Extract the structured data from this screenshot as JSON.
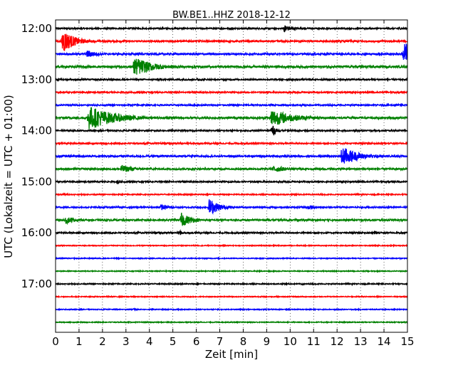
{
  "chart_data": {
    "type": "line",
    "chart_kind": "helicorder / seismogram dayplot",
    "title": "BW.BE1..HHZ 2018-12-12",
    "xlabel": "Zeit  [min]",
    "ylabel": "UTC (Lokalzeit = UTC + 01:00)",
    "xlim": [
      0,
      15
    ],
    "x_ticks": [
      "0",
      "1",
      "2",
      "3",
      "4",
      "5",
      "6",
      "7",
      "8",
      "9",
      "10",
      "11",
      "12",
      "13",
      "14",
      "15"
    ],
    "y_ticks": [
      "12:00",
      "13:00",
      "14:00",
      "15:00",
      "16:00",
      "17:00"
    ],
    "y_tick_rows": [
      0,
      4,
      8,
      12,
      16,
      20
    ],
    "vertical_grid": "dotted at each minute",
    "trace_colors": [
      "#000000",
      "#ff0000",
      "#0000ff",
      "#008000"
    ],
    "rows": [
      {
        "start": "12:00",
        "noise": 0.08,
        "events": [
          {
            "t": 9.75,
            "amp": 0.45,
            "dur": 0.35
          },
          {
            "t": 12.2,
            "amp": 0.15,
            "dur": 0.15
          },
          {
            "t": 14.6,
            "amp": 0.2,
            "dur": 0.2
          }
        ]
      },
      {
        "start": "12:15",
        "noise": 0.1,
        "events": [
          {
            "t": 0.3,
            "amp": 1.5,
            "dur": 0.5
          },
          {
            "t": 8.7,
            "amp": 0.12,
            "dur": 0.3
          }
        ]
      },
      {
        "start": "12:30",
        "noise": 0.1,
        "events": [
          {
            "t": 1.35,
            "amp": 0.5,
            "dur": 0.45
          },
          {
            "t": 3.5,
            "amp": 0.2,
            "dur": 0.25
          },
          {
            "t": 14.85,
            "amp": 1.6,
            "dur": 0.5
          }
        ]
      },
      {
        "start": "12:45",
        "noise": 0.12,
        "events": [
          {
            "t": 3.35,
            "amp": 1.2,
            "dur": 0.8
          },
          {
            "t": 4.9,
            "amp": 0.25,
            "dur": 0.3
          },
          {
            "t": 0.4,
            "amp": 0.2,
            "dur": 0.2
          }
        ]
      },
      {
        "start": "13:00",
        "noise": 0.08,
        "events": [
          {
            "t": 6.05,
            "amp": 0.25,
            "dur": 0.15
          },
          {
            "t": 14.1,
            "amp": 0.2,
            "dur": 0.15
          }
        ]
      },
      {
        "start": "13:15",
        "noise": 0.08,
        "events": []
      },
      {
        "start": "13:30",
        "noise": 0.08,
        "events": [
          {
            "t": 9.2,
            "amp": 0.2,
            "dur": 0.15
          },
          {
            "t": 14.45,
            "amp": 0.25,
            "dur": 0.15
          }
        ]
      },
      {
        "start": "13:45",
        "noise": 0.12,
        "events": [
          {
            "t": 1.4,
            "amp": 1.5,
            "dur": 1.1
          },
          {
            "t": 9.2,
            "amp": 1.1,
            "dur": 0.9
          }
        ]
      },
      {
        "start": "14:00",
        "noise": 0.08,
        "events": [
          {
            "t": 9.2,
            "amp": 0.8,
            "dur": 0.2
          },
          {
            "t": 12.3,
            "amp": 0.15,
            "dur": 0.15
          }
        ]
      },
      {
        "start": "14:15",
        "noise": 0.08,
        "events": []
      },
      {
        "start": "14:30",
        "noise": 0.1,
        "events": [
          {
            "t": 12.2,
            "amp": 1.2,
            "dur": 0.7
          }
        ]
      },
      {
        "start": "14:45",
        "noise": 0.1,
        "events": [
          {
            "t": 2.8,
            "amp": 0.5,
            "dur": 0.6
          },
          {
            "t": 9.3,
            "amp": 0.45,
            "dur": 0.6
          }
        ]
      },
      {
        "start": "15:00",
        "noise": 0.08,
        "events": [
          {
            "t": 2.65,
            "amp": 0.35,
            "dur": 0.15
          }
        ]
      },
      {
        "start": "15:15",
        "noise": 0.06,
        "events": [
          {
            "t": 0.35,
            "amp": 0.2,
            "dur": 0.15
          }
        ]
      },
      {
        "start": "15:30",
        "noise": 0.08,
        "events": [
          {
            "t": 6.55,
            "amp": 1.0,
            "dur": 0.45
          },
          {
            "t": 4.5,
            "amp": 0.35,
            "dur": 0.4
          },
          {
            "t": 10.8,
            "amp": 0.3,
            "dur": 0.4
          }
        ]
      },
      {
        "start": "15:45",
        "noise": 0.1,
        "events": [
          {
            "t": 0.45,
            "amp": 0.5,
            "dur": 0.35
          },
          {
            "t": 5.35,
            "amp": 0.9,
            "dur": 0.45
          }
        ]
      },
      {
        "start": "16:00",
        "noise": 0.08,
        "events": [
          {
            "t": 5.3,
            "amp": 0.3,
            "dur": 0.15
          },
          {
            "t": 13.6,
            "amp": 0.3,
            "dur": 0.15
          }
        ]
      },
      {
        "start": "16:15",
        "noise": 0.05,
        "events": []
      },
      {
        "start": "16:30",
        "noise": 0.05,
        "events": []
      },
      {
        "start": "16:45",
        "noise": 0.05,
        "events": []
      },
      {
        "start": "17:00",
        "noise": 0.06,
        "events": [
          {
            "t": 10.5,
            "amp": 0.15,
            "dur": 0.15
          }
        ]
      },
      {
        "start": "17:15",
        "noise": 0.05,
        "events": []
      },
      {
        "start": "17:30",
        "noise": 0.05,
        "events": [
          {
            "t": 3.35,
            "amp": 0.2,
            "dur": 0.15
          }
        ]
      },
      {
        "start": "17:45",
        "noise": 0.05,
        "events": []
      }
    ]
  }
}
